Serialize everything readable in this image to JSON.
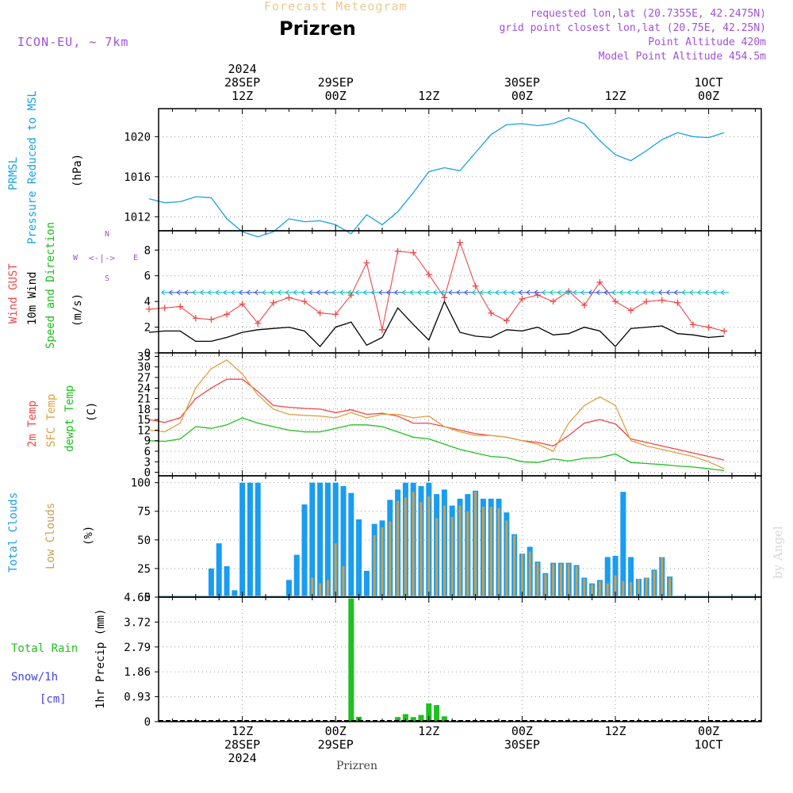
{
  "header": {
    "title": "Prizren",
    "subtitle": "Forecast Meteogram",
    "model": "ICON-EU, ~ 7km",
    "info": [
      "requested lon,lat (20.7355E, 42.2475N)",
      "grid point closest lon,lat (20.75E, 42.25N)",
      "Point Altitude 420m",
      "Model Point Altitude 454.5m"
    ],
    "footer": "Prizren",
    "watermark": "by Angel"
  },
  "time_axis": {
    "top": [
      {
        "lines": [
          "2024",
          "28SEP",
          "12Z"
        ]
      },
      {
        "lines": [
          "29SEP",
          "00Z"
        ]
      },
      {
        "lines": [
          "12Z"
        ]
      },
      {
        "lines": [
          "30SEP",
          "00Z"
        ]
      },
      {
        "lines": [
          "12Z"
        ]
      },
      {
        "lines": [
          "1OCT",
          "00Z"
        ]
      }
    ],
    "bottom": [
      {
        "lines": [
          "12Z",
          "28SEP",
          "2024"
        ]
      },
      {
        "lines": [
          "00Z",
          "29SEP"
        ]
      },
      {
        "lines": [
          "12Z"
        ]
      },
      {
        "lines": [
          "00Z",
          "30SEP"
        ]
      },
      {
        "lines": [
          "12Z"
        ]
      },
      {
        "lines": [
          "00Z",
          "1OCT"
        ]
      }
    ]
  },
  "panels": {
    "pressure": {
      "label1": "PRMSL",
      "label2": "Pressure Reduced to MSL",
      "unit": "(hPa)"
    },
    "wind": {
      "label_gust": "Wind GUST",
      "label_wind": "10m Wind",
      "label_dir": "Speed and Direction",
      "unit": "(m/s)",
      "compass_n": "N",
      "compass_s": "S",
      "compass_w": "W",
      "compass_e": "E"
    },
    "temp": {
      "label_2m": "2m Temp",
      "label_sfc": "SFC Temp",
      "label_dew": "dewpt Temp",
      "unit": "(C)"
    },
    "clouds": {
      "label_total": "Total Clouds",
      "label_low": "Low Clouds",
      "unit": "(%)"
    },
    "precip": {
      "label_rain": "Total  Rain",
      "label_snow": "Snow/1h",
      "label_cm": "[cm]",
      "label_axis": "1hr Precip (mm)"
    }
  },
  "colors": {
    "pressure": "#1aa0e8",
    "gust": "#f04848",
    "wind": "#000000",
    "temp2m": "#f04848",
    "sfc": "#e0a040",
    "dew": "#20c020",
    "total_clouds": "#1a9cf0",
    "low_clouds": "#c8a050",
    "rain": "#20c020",
    "snow": "#4040f0"
  },
  "chart_data": [
    {
      "type": "line",
      "title": "PRMSL",
      "ylabel": "(hPa)",
      "ylim": [
        1010.6,
        1022.8
      ],
      "yticks": [
        1012,
        1016,
        1020
      ],
      "x_hours": [
        0,
        2,
        4,
        6,
        8,
        10,
        12,
        14,
        16,
        18,
        20,
        22,
        24,
        26,
        28,
        30,
        32,
        34,
        36,
        38,
        40,
        42,
        44,
        46,
        48,
        50,
        52,
        54,
        56,
        58,
        60,
        62,
        64,
        66,
        68,
        70,
        72,
        74
      ],
      "values": [
        1013.8,
        1013.4,
        1013.5,
        1014.0,
        1013.9,
        1011.8,
        1010.5,
        1010.0,
        1010.5,
        1011.8,
        1011.5,
        1011.6,
        1011.2,
        1010.3,
        1012.2,
        1011.2,
        1012.5,
        1014.4,
        1016.5,
        1016.9,
        1016.6,
        1018.4,
        1020.2,
        1021.2,
        1021.3,
        1021.1,
        1021.3,
        1021.9,
        1021.3,
        1019.6,
        1018.2,
        1017.6,
        1018.6,
        1019.7,
        1020.4,
        1020.0,
        1019.9,
        1020.4
      ]
    },
    {
      "type": "line",
      "title": "Wind GUST / 10m Wind",
      "ylabel": "(m/s)",
      "ylim": [
        0,
        9.5
      ],
      "yticks": [
        0,
        2,
        4,
        6,
        8
      ],
      "x_hours": [
        0,
        2,
        4,
        6,
        8,
        10,
        12,
        14,
        16,
        18,
        20,
        22,
        24,
        26,
        28,
        30,
        32,
        34,
        36,
        38,
        40,
        42,
        44,
        46,
        48,
        50,
        52,
        54,
        56,
        58,
        60,
        62,
        64,
        66,
        68,
        70,
        72,
        74
      ],
      "series": [
        {
          "name": "Wind GUST",
          "values": [
            3.4,
            3.5,
            3.6,
            2.7,
            2.6,
            3.0,
            3.8,
            2.3,
            3.9,
            4.3,
            4.0,
            3.1,
            3.0,
            4.5,
            7.0,
            1.8,
            7.9,
            7.8,
            6.1,
            4.3,
            8.6,
            5.2,
            3.1,
            2.5,
            4.2,
            4.5,
            4.0,
            4.8,
            3.7,
            5.5,
            4.0,
            3.3,
            4.0,
            4.1,
            3.9,
            2.2,
            2.0,
            1.7
          ]
        },
        {
          "name": "10m Wind",
          "values": [
            1.6,
            1.7,
            1.7,
            0.9,
            0.9,
            1.2,
            1.6,
            1.8,
            1.9,
            2.0,
            1.7,
            0.5,
            2.0,
            2.4,
            0.6,
            1.2,
            3.5,
            2.2,
            1.0,
            4.0,
            1.6,
            1.3,
            1.2,
            1.8,
            1.7,
            2.0,
            1.4,
            1.5,
            2.0,
            1.7,
            0.5,
            1.9,
            2.0,
            2.1,
            1.5,
            1.4,
            1.2,
            1.3
          ]
        }
      ]
    },
    {
      "type": "line",
      "title": "Temperatures",
      "ylabel": "(C)",
      "ylim": [
        -1,
        34
      ],
      "yticks": [
        0,
        3,
        6,
        9,
        12,
        15,
        18,
        21,
        24,
        27,
        30,
        33
      ],
      "x_hours": [
        0,
        2,
        4,
        6,
        8,
        10,
        12,
        14,
        16,
        18,
        20,
        22,
        24,
        26,
        28,
        30,
        32,
        34,
        36,
        38,
        40,
        42,
        44,
        46,
        48,
        50,
        52,
        54,
        56,
        58,
        60,
        62,
        64,
        66,
        68,
        70,
        72,
        74
      ],
      "series": [
        {
          "name": "2m Temp",
          "values": [
            15,
            14.2,
            15.5,
            21,
            24,
            26.5,
            26.5,
            23,
            19,
            18.5,
            18.2,
            18,
            17,
            17.8,
            16.5,
            16.8,
            16,
            14,
            14,
            13,
            12,
            11,
            10.5,
            10,
            9,
            8.5,
            7.5,
            10.5,
            14,
            15,
            13.8,
            9.5,
            8.5,
            7.5,
            6.5,
            5.5,
            4.5,
            3.5
          ]
        },
        {
          "name": "SFC Temp",
          "values": [
            12,
            11.5,
            14,
            24,
            29.5,
            32,
            28,
            22,
            18,
            16.5,
            16.2,
            16,
            15.5,
            17,
            15.5,
            16.5,
            16.5,
            15.5,
            16,
            13,
            11.5,
            10.5,
            10.5,
            10,
            9,
            8,
            6,
            14,
            19,
            21.5,
            19,
            9,
            7.5,
            6.5,
            5.5,
            4.5,
            3,
            1
          ]
        },
        {
          "name": "dewpt Temp",
          "values": [
            9,
            8.8,
            9.5,
            13,
            12.5,
            13.5,
            15.5,
            14,
            13,
            12,
            11.5,
            11.5,
            12.5,
            13.5,
            13.5,
            13,
            11.5,
            10,
            9.5,
            8,
            6.5,
            5.5,
            4.5,
            4.2,
            3,
            2.8,
            3.8,
            3.2,
            4,
            4.2,
            5.2,
            2.8,
            2.5,
            2.2,
            1.8,
            1.5,
            1.0,
            0.5
          ]
        }
      ]
    },
    {
      "type": "bar",
      "title": "Clouds",
      "ylabel": "(%)",
      "ylim": [
        0,
        106
      ],
      "yticks": [
        0,
        25,
        50,
        75,
        100
      ],
      "x_hours": [
        6,
        8,
        9,
        10,
        11,
        12,
        13,
        14,
        15,
        16,
        17,
        18,
        19,
        20,
        21,
        22,
        23,
        24,
        25,
        26,
        27,
        28,
        29,
        30,
        31,
        32,
        33,
        34,
        35,
        36,
        37,
        38,
        39,
        40,
        41,
        42,
        43,
        44,
        45,
        46,
        47,
        48,
        49,
        50,
        51,
        52,
        53,
        54,
        55,
        56,
        57,
        58,
        59,
        60,
        61,
        62,
        63,
        64,
        65,
        66,
        67,
        68,
        69,
        70
      ],
      "series": [
        {
          "name": "Total Clouds",
          "values": [
            0,
            25,
            47,
            27,
            6,
            100,
            100,
            100,
            0,
            0,
            0,
            15,
            37,
            81,
            100,
            100,
            100,
            100,
            97,
            91,
            68,
            23,
            64,
            67,
            85,
            94,
            100,
            100,
            97,
            100,
            90,
            94,
            80,
            86,
            90,
            93,
            86,
            86,
            86,
            74,
            55,
            38,
            44,
            31,
            21,
            30,
            30,
            30,
            28,
            17,
            12,
            15,
            35,
            36,
            92,
            35,
            16,
            17,
            24,
            35,
            18,
            0,
            0,
            0
          ]
        },
        {
          "name": "Low Clouds",
          "values": [
            0,
            0,
            0,
            0,
            0,
            0,
            0,
            0,
            0,
            0,
            0,
            0,
            0,
            0,
            17,
            12,
            15,
            47,
            27,
            0,
            0,
            0,
            54,
            61,
            66,
            84,
            87,
            92,
            83,
            88,
            69,
            80,
            70,
            80,
            75,
            92,
            79,
            79,
            78,
            67,
            54,
            38,
            40,
            30,
            20,
            29,
            29,
            29,
            27,
            16,
            11,
            14,
            12,
            19,
            14,
            13,
            16,
            17,
            23,
            35,
            17,
            0,
            0,
            0
          ]
        }
      ]
    },
    {
      "type": "bar",
      "title": "1hr Precip",
      "ylabel": "1hr Precip (mm)",
      "ylim": [
        0,
        4.65
      ],
      "yticks": [
        0,
        0.93,
        1.86,
        2.79,
        3.72,
        4.65
      ],
      "ytick_labels": [
        "0",
        "0.93",
        "1.86",
        "2.79",
        "3.72",
        "4.65"
      ],
      "x_hours": [
        26,
        27,
        32,
        33,
        34,
        35,
        36,
        37,
        38,
        40
      ],
      "series": [
        {
          "name": "Total Rain",
          "values": [
            4.6,
            0.18,
            0.17,
            0.28,
            0.17,
            0.25,
            0.68,
            0.62,
            0.2,
            0.05
          ]
        }
      ]
    }
  ]
}
